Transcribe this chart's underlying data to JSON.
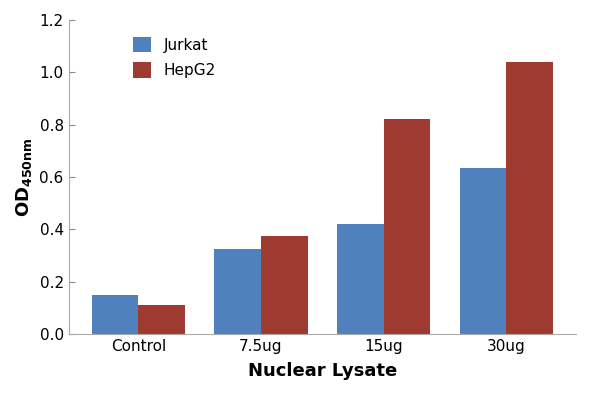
{
  "categories": [
    "Control",
    "7.5ug",
    "15ug",
    "30ug"
  ],
  "jurkat_values": [
    0.15,
    0.325,
    0.42,
    0.635
  ],
  "hepg2_values": [
    0.11,
    0.375,
    0.82,
    1.04
  ],
  "jurkat_color": "#4F81BD",
  "hepg2_color": "#9E3A2F",
  "xlabel": "Nuclear Lysate",
  "ylabel": "OD",
  "ylabel_subscript": "450nm",
  "ylim": [
    0,
    1.2
  ],
  "yticks": [
    0,
    0.2,
    0.4,
    0.6,
    0.8,
    1.0,
    1.2
  ],
  "legend_labels": [
    "Jurkat",
    "HepG2"
  ],
  "bar_width": 0.38,
  "axis_label_fontsize": 13,
  "tick_fontsize": 11,
  "legend_fontsize": 11,
  "background_color": "#ffffff"
}
